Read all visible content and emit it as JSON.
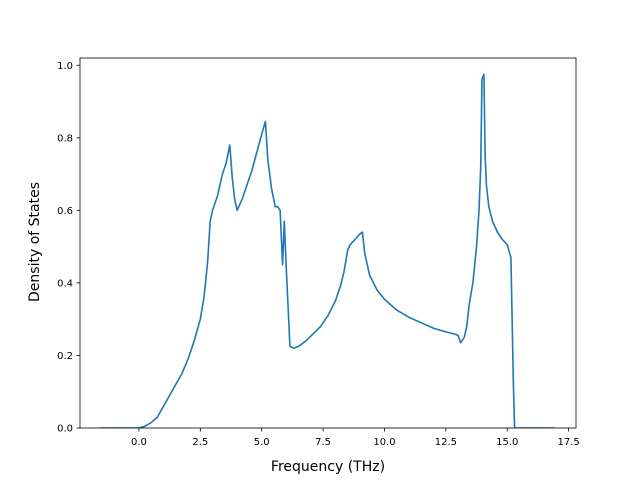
{
  "chart_data": {
    "type": "line",
    "title": "",
    "xlabel": "Frequency (THz)",
    "ylabel": "Density of States",
    "xlim": [
      -2.4,
      17.8
    ],
    "ylim": [
      0.0,
      1.02
    ],
    "grid": false,
    "legend": "none",
    "x_ticks": [
      0.0,
      2.5,
      5.0,
      7.5,
      10.0,
      12.5,
      15.0,
      17.5
    ],
    "x_tick_labels": [
      "0.0",
      "2.5",
      "5.0",
      "7.5",
      "10.0",
      "12.5",
      "15.0",
      "17.5"
    ],
    "y_ticks": [
      0.0,
      0.2,
      0.4,
      0.6,
      0.8,
      1.0
    ],
    "y_tick_labels": [
      "0.0",
      "0.2",
      "0.4",
      "0.6",
      "0.8",
      "1.0"
    ],
    "series": [
      {
        "color": "#1f77b4",
        "x": [
          -1.6,
          0.0,
          0.25,
          0.5,
          0.75,
          1.0,
          1.25,
          1.5,
          1.75,
          2.0,
          2.25,
          2.5,
          2.65,
          2.8,
          2.9,
          3.0,
          3.2,
          3.4,
          3.55,
          3.7,
          3.8,
          3.9,
          4.0,
          4.2,
          4.4,
          4.6,
          4.8,
          5.0,
          5.15,
          5.25,
          5.4,
          5.55,
          5.65,
          5.75,
          5.85,
          5.92,
          6.0,
          6.15,
          6.3,
          6.5,
          6.8,
          7.1,
          7.4,
          7.7,
          8.0,
          8.2,
          8.35,
          8.45,
          8.5,
          8.6,
          8.8,
          9.0,
          9.1,
          9.2,
          9.4,
          9.7,
          10.0,
          10.5,
          11.0,
          11.5,
          12.0,
          12.5,
          12.9,
          13.0,
          13.1,
          13.25,
          13.35,
          13.45,
          13.6,
          13.75,
          13.85,
          13.92,
          13.97,
          14.05,
          14.1,
          14.15,
          14.25,
          14.4,
          14.6,
          14.8,
          15.0,
          15.15,
          15.25,
          15.3,
          15.32,
          16.9
        ],
        "y": [
          0.0,
          0.0,
          0.005,
          0.015,
          0.03,
          0.06,
          0.09,
          0.12,
          0.15,
          0.19,
          0.24,
          0.3,
          0.36,
          0.46,
          0.57,
          0.6,
          0.64,
          0.7,
          0.73,
          0.78,
          0.69,
          0.63,
          0.6,
          0.63,
          0.67,
          0.71,
          0.76,
          0.81,
          0.845,
          0.74,
          0.66,
          0.61,
          0.61,
          0.6,
          0.45,
          0.57,
          0.44,
          0.225,
          0.22,
          0.225,
          0.24,
          0.26,
          0.28,
          0.31,
          0.35,
          0.39,
          0.43,
          0.47,
          0.49,
          0.505,
          0.52,
          0.535,
          0.54,
          0.48,
          0.42,
          0.38,
          0.355,
          0.325,
          0.305,
          0.29,
          0.275,
          0.265,
          0.258,
          0.255,
          0.235,
          0.25,
          0.28,
          0.34,
          0.4,
          0.5,
          0.6,
          0.72,
          0.96,
          0.975,
          0.75,
          0.67,
          0.61,
          0.57,
          0.54,
          0.52,
          0.505,
          0.47,
          0.12,
          0.0,
          0.0,
          0.0
        ]
      }
    ]
  }
}
